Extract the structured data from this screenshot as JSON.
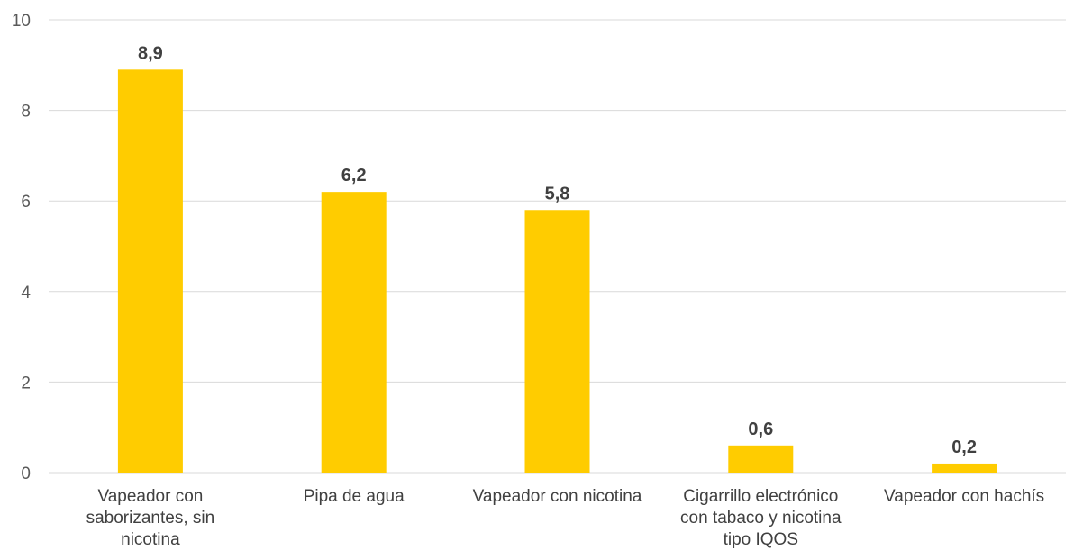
{
  "chart_data": {
    "type": "bar",
    "categories": [
      [
        "Vapeador con",
        "saborizantes, sin",
        "nicotina"
      ],
      [
        "Pipa de agua"
      ],
      [
        "Vapeador con nicotina"
      ],
      [
        "Cigarrillo electrónico",
        "con tabaco y nicotina",
        "tipo IQOS"
      ],
      [
        "Vapeador con hachís"
      ]
    ],
    "values": [
      8.9,
      6.2,
      5.8,
      0.6,
      0.2
    ],
    "data_labels": [
      "8,9",
      "6,2",
      "5,8",
      "0,6",
      "0,2"
    ],
    "ylim": [
      0,
      10
    ],
    "yticks": [
      0,
      2,
      4,
      6,
      8,
      10
    ],
    "grid": true,
    "colors": {
      "bar": "#FFCC00"
    }
  }
}
